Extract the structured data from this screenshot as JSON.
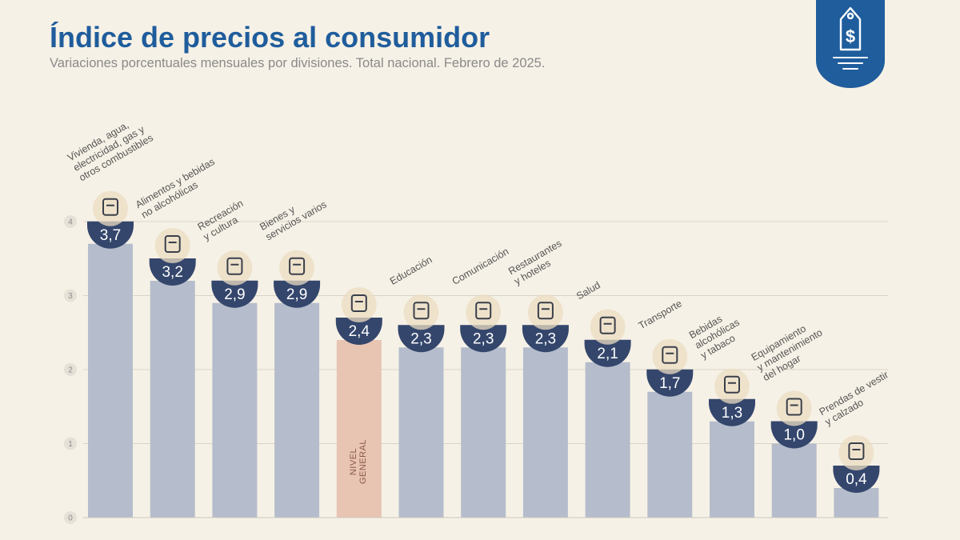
{
  "header": {
    "title": "Índice de precios al consumidor",
    "subtitle": "Variaciones porcentuales mensuales por divisiones. Total nacional. Febrero de 2025."
  },
  "badge": {
    "icon": "price-tag-dollar-icon",
    "color": "#1f5d9c"
  },
  "colors": {
    "bar": "#b5bdcc",
    "bar_highlight": "#e8c4b2",
    "value_badge": "#34466c",
    "grid": "#d9d4c8",
    "icon_bg": "#ebdcc2"
  },
  "chart_data": {
    "type": "bar",
    "title": "Índice de precios al consumidor",
    "subtitle": "Variaciones porcentuales mensuales por divisiones. Total nacional. Febrero de 2025.",
    "xlabel": "",
    "ylabel": "",
    "ylim": [
      0,
      4
    ],
    "yticks": [
      "0",
      "1",
      "2",
      "3",
      "4"
    ],
    "grid": true,
    "categories": [
      "Vivienda, agua, electricidad, gas y otros combustibles",
      "Alimentos y bebidas no alcohólicas",
      "Recreación y cultura",
      "Bienes y servicios varios",
      "Nivel general",
      "Educación",
      "Comunicación",
      "Restaurantes y hoteles",
      "Salud",
      "Transporte",
      "Bebidas alcohólicas y tabaco",
      "Equipamiento y mantenimiento del hogar",
      "Prendas de vestir y calzado"
    ],
    "category_label_lines": [
      [
        "Vivienda, agua,",
        "electricidad, gas y",
        "otros combustibles"
      ],
      [
        "Alimentos y bebidas",
        "no alcohólicas"
      ],
      [
        "Recreación",
        "y cultura"
      ],
      [
        "Bienes y",
        "servicios varios"
      ],
      [],
      [
        "Educación"
      ],
      [
        "Comunicación"
      ],
      [
        "Restaurantes",
        "y hoteles"
      ],
      [
        "Salud"
      ],
      [
        "Transporte"
      ],
      [
        "Bebidas",
        "alcohólicas",
        "y tabaco"
      ],
      [
        "Equipamiento",
        "y mantenimiento",
        "del hogar"
      ],
      [
        "Prendas de vestir",
        "y calzado"
      ]
    ],
    "inbar_label_lines": [
      "NIVEL",
      "GENERAL"
    ],
    "values": [
      3.7,
      3.2,
      2.9,
      2.9,
      2.4,
      2.3,
      2.3,
      2.3,
      2.1,
      1.7,
      1.3,
      1.0,
      0.4
    ],
    "value_labels": [
      "3,7",
      "3,2",
      "2,9",
      "2,9",
      "2,4",
      "2,3",
      "2,3",
      "2,3",
      "2,1",
      "1,7",
      "1,3",
      "1,0",
      "0,4"
    ],
    "highlight_index": 4,
    "icons": [
      "utilities-icon",
      "food-icon",
      "recreation-icon",
      "grooming-icon",
      "shopping-basket-icon",
      "notebook-icon",
      "smartphone-icon",
      "restaurant-icon",
      "health-cross-icon",
      "transport-icon",
      "beverages-icon",
      "air-conditioner-icon",
      "clothing-icon"
    ]
  }
}
